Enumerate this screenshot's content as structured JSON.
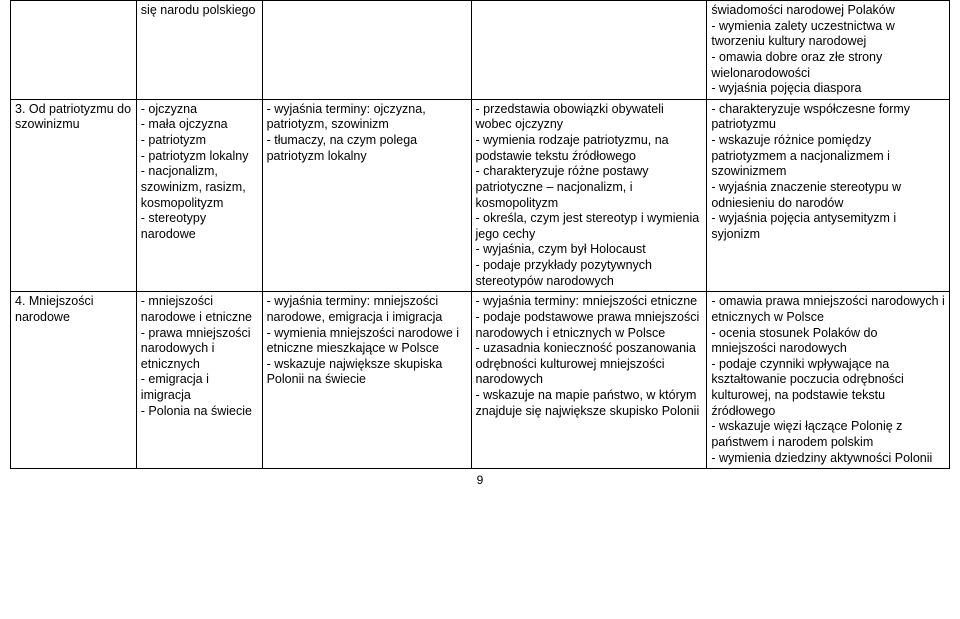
{
  "table": {
    "rows": [
      {
        "c1": "",
        "c2": "się narodu polskiego",
        "c3": "",
        "c4": "",
        "c5": "świadomości narodowej Polaków\n- wymienia zalety uczestnictwa w tworzeniu kultury narodowej\n- omawia dobre oraz złe strony wielonarodowości\n- wyjaśnia pojęcia diaspora"
      },
      {
        "c1": "3. Od patriotyzmu do szowinizmu",
        "c2": "- ojczyzna\n- mała ojczyzna\n- patriotyzm\n- patriotyzm lokalny\n- nacjonalizm, szowinizm, rasizm, kosmopolityzm\n- stereotypy narodowe",
        "c3": "- wyjaśnia terminy: ojczyzna, patriotyzm, szowinizm\n- tłumaczy, na czym polega patriotyzm lokalny",
        "c4": "- przedstawia obowiązki obywateli wobec ojczyzny\n- wymienia rodzaje patriotyzmu, na podstawie tekstu źródłowego\n- charakteryzuje różne postawy patriotyczne – nacjonalizm, i kosmopolityzm\n- określa, czym jest stereotyp i wymienia jego cechy\n- wyjaśnia, czym był Holocaust\n- podaje przykłady pozytywnych stereotypów narodowych",
        "c5": "- charakteryzuje współczesne formy patriotyzmu\n- wskazuje różnice pomiędzy patriotyzmem a nacjonalizmem i szowinizmem\n- wyjaśnia znaczenie stereotypu w odniesieniu do narodów\n- wyjaśnia pojęcia antysemityzm i syjonizm"
      },
      {
        "c1": "4. Mniejszości narodowe",
        "c2": "- mniejszości narodowe i etniczne\n- prawa mniejszości narodowych i etnicznych\n- emigracja i imigracja\n- Polonia na świecie",
        "c3": "- wyjaśnia terminy: mniejszości narodowe, emigracja i imigracja\n- wymienia mniejszości narodowe i etniczne mieszkające w Polsce\n- wskazuje największe skupiska Polonii na świecie",
        "c4": "- wyjaśnia terminy: mniejszości etniczne\n- podaje podstawowe prawa mniejszości narodowych i etnicznych w Polsce\n- uzasadnia konieczność poszanowania odrębności kulturowej mniejszości narodowych\n- wskazuje na mapie państwo, w którym znajduje się największe skupisko Polonii",
        "c5": "- omawia prawa mniejszości narodowych i etnicznych w Polsce\n- ocenia stosunek Polaków do mniejszości narodowych\n- podaje czynniki wpływające na kształtowanie poczucia odrębności kulturowej, na podstawie tekstu źródłowego\n- wskazuje więzi łączące Polonię z państwem i narodem polskim\n- wymienia dziedziny aktywności Polonii"
      }
    ]
  },
  "pageNumber": "9"
}
